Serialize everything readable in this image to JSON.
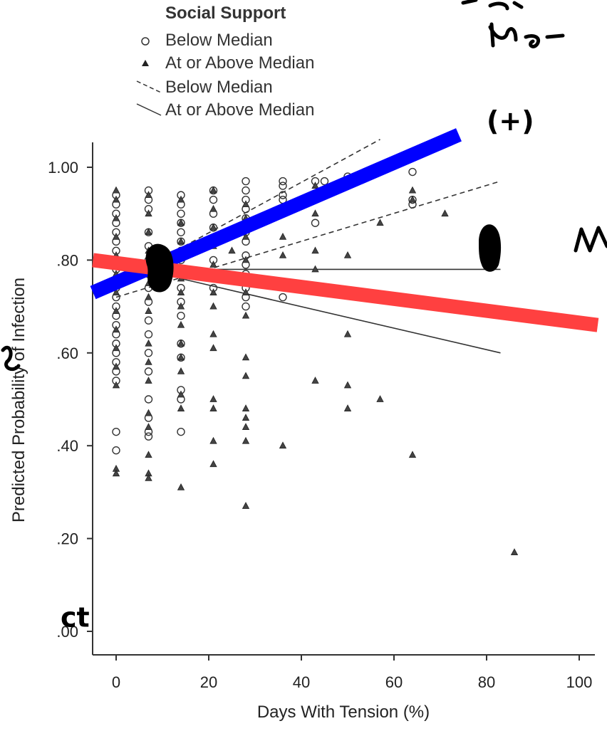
{
  "chart_data": {
    "type": "scatter",
    "xlabel": "Days With Tension (%)",
    "ylabel": "Predicted Probability of Infection",
    "xlim": [
      -5,
      105
    ],
    "ylim": [
      -0.05,
      1.05
    ],
    "x_ticks": [
      0,
      20,
      40,
      60,
      80,
      100
    ],
    "y_ticks": [
      0.0,
      0.2,
      0.4,
      0.6,
      0.8,
      1.0
    ],
    "x_tick_labels": [
      "0",
      "20",
      "40",
      "60",
      "80",
      "100"
    ],
    "y_tick_labels": [
      ".00",
      ".20",
      ".40",
      ".60",
      ".80",
      "1.00"
    ],
    "legend": {
      "title": "Social Support",
      "placement": "top-left",
      "entries": [
        {
          "label": "Below Median",
          "marker": "circle"
        },
        {
          "label": "At or Above Median",
          "marker": "triangle"
        },
        {
          "label": "Below Median",
          "marker": "dashed-line"
        },
        {
          "label": "At or Above Median",
          "marker": "solid-line"
        }
      ]
    },
    "series": [
      {
        "name": "Below Median",
        "marker": "circle",
        "points": [
          [
            0,
            0.94
          ],
          [
            0,
            0.92
          ],
          [
            0,
            0.9
          ],
          [
            0,
            0.88
          ],
          [
            0,
            0.86
          ],
          [
            0,
            0.84
          ],
          [
            0,
            0.82
          ],
          [
            0,
            0.8
          ],
          [
            0,
            0.78
          ],
          [
            0,
            0.76
          ],
          [
            0,
            0.74
          ],
          [
            0,
            0.72
          ],
          [
            0,
            0.7
          ],
          [
            0,
            0.68
          ],
          [
            0,
            0.66
          ],
          [
            0,
            0.64
          ],
          [
            0,
            0.62
          ],
          [
            0,
            0.6
          ],
          [
            0,
            0.58
          ],
          [
            0,
            0.56
          ],
          [
            0,
            0.54
          ],
          [
            0,
            0.43
          ],
          [
            0,
            0.39
          ],
          [
            7,
            0.95
          ],
          [
            7,
            0.93
          ],
          [
            7,
            0.91
          ],
          [
            7,
            0.86
          ],
          [
            7,
            0.83
          ],
          [
            7,
            0.8
          ],
          [
            7,
            0.77
          ],
          [
            7,
            0.74
          ],
          [
            7,
            0.71
          ],
          [
            7,
            0.67
          ],
          [
            7,
            0.64
          ],
          [
            7,
            0.6
          ],
          [
            7,
            0.56
          ],
          [
            7,
            0.5
          ],
          [
            7,
            0.46
          ],
          [
            7,
            0.43
          ],
          [
            7,
            0.42
          ],
          [
            14,
            0.94
          ],
          [
            14,
            0.92
          ],
          [
            14,
            0.9
          ],
          [
            14,
            0.88
          ],
          [
            14,
            0.86
          ],
          [
            14,
            0.84
          ],
          [
            14,
            0.82
          ],
          [
            14,
            0.8
          ],
          [
            14,
            0.77
          ],
          [
            14,
            0.74
          ],
          [
            14,
            0.71
          ],
          [
            14,
            0.68
          ],
          [
            14,
            0.62
          ],
          [
            14,
            0.59
          ],
          [
            14,
            0.52
          ],
          [
            14,
            0.5
          ],
          [
            14,
            0.43
          ],
          [
            21,
            0.95
          ],
          [
            21,
            0.93
          ],
          [
            21,
            0.9
          ],
          [
            21,
            0.87
          ],
          [
            21,
            0.84
          ],
          [
            21,
            0.8
          ],
          [
            21,
            0.77
          ],
          [
            21,
            0.74
          ],
          [
            28,
            0.97
          ],
          [
            28,
            0.95
          ],
          [
            28,
            0.93
          ],
          [
            28,
            0.91
          ],
          [
            28,
            0.89
          ],
          [
            28,
            0.86
          ],
          [
            28,
            0.84
          ],
          [
            28,
            0.81
          ],
          [
            28,
            0.79
          ],
          [
            28,
            0.77
          ],
          [
            28,
            0.74
          ],
          [
            28,
            0.72
          ],
          [
            28,
            0.7
          ],
          [
            36,
            0.97
          ],
          [
            36,
            0.96
          ],
          [
            36,
            0.94
          ],
          [
            36,
            0.93
          ],
          [
            36,
            0.91
          ],
          [
            36,
            0.72
          ],
          [
            43,
            0.88
          ],
          [
            43,
            0.97
          ],
          [
            45,
            0.97
          ],
          [
            50,
            0.98
          ],
          [
            64,
            0.99
          ],
          [
            64,
            0.93
          ],
          [
            64,
            0.92
          ]
        ]
      },
      {
        "name": "At or Above Median",
        "marker": "triangle",
        "points": [
          [
            0,
            0.95
          ],
          [
            0,
            0.93
          ],
          [
            0,
            0.89
          ],
          [
            0,
            0.85
          ],
          [
            0,
            0.81
          ],
          [
            0,
            0.77
          ],
          [
            0,
            0.73
          ],
          [
            0,
            0.69
          ],
          [
            0,
            0.65
          ],
          [
            0,
            0.61
          ],
          [
            0,
            0.57
          ],
          [
            0,
            0.53
          ],
          [
            0,
            0.35
          ],
          [
            0,
            0.34
          ],
          [
            7,
            0.94
          ],
          [
            7,
            0.9
          ],
          [
            7,
            0.86
          ],
          [
            7,
            0.82
          ],
          [
            7,
            0.78
          ],
          [
            7,
            0.75
          ],
          [
            7,
            0.72
          ],
          [
            7,
            0.69
          ],
          [
            7,
            0.62
          ],
          [
            7,
            0.58
          ],
          [
            7,
            0.54
          ],
          [
            7,
            0.47
          ],
          [
            7,
            0.44
          ],
          [
            7,
            0.38
          ],
          [
            7,
            0.34
          ],
          [
            7,
            0.33
          ],
          [
            14,
            0.93
          ],
          [
            14,
            0.88
          ],
          [
            14,
            0.84
          ],
          [
            14,
            0.81
          ],
          [
            14,
            0.76
          ],
          [
            14,
            0.73
          ],
          [
            14,
            0.7
          ],
          [
            14,
            0.66
          ],
          [
            14,
            0.62
          ],
          [
            14,
            0.59
          ],
          [
            14,
            0.56
          ],
          [
            14,
            0.51
          ],
          [
            14,
            0.48
          ],
          [
            14,
            0.31
          ],
          [
            21,
            0.95
          ],
          [
            21,
            0.91
          ],
          [
            21,
            0.87
          ],
          [
            21,
            0.83
          ],
          [
            21,
            0.79
          ],
          [
            21,
            0.73
          ],
          [
            21,
            0.7
          ],
          [
            21,
            0.64
          ],
          [
            21,
            0.61
          ],
          [
            21,
            0.5
          ],
          [
            21,
            0.48
          ],
          [
            21,
            0.41
          ],
          [
            21,
            0.36
          ],
          [
            25,
            0.82
          ],
          [
            28,
            0.92
          ],
          [
            28,
            0.89
          ],
          [
            28,
            0.85
          ],
          [
            28,
            0.8
          ],
          [
            28,
            0.76
          ],
          [
            28,
            0.73
          ],
          [
            28,
            0.68
          ],
          [
            28,
            0.59
          ],
          [
            28,
            0.55
          ],
          [
            28,
            0.48
          ],
          [
            28,
            0.46
          ],
          [
            28,
            0.44
          ],
          [
            28,
            0.41
          ],
          [
            28,
            0.27
          ],
          [
            36,
            0.85
          ],
          [
            36,
            0.81
          ],
          [
            36,
            0.4
          ],
          [
            43,
            0.96
          ],
          [
            43,
            0.9
          ],
          [
            43,
            0.82
          ],
          [
            43,
            0.78
          ],
          [
            43,
            0.73
          ],
          [
            43,
            0.54
          ],
          [
            50,
            0.81
          ],
          [
            50,
            0.64
          ],
          [
            50,
            0.53
          ],
          [
            50,
            0.48
          ],
          [
            57,
            0.88
          ],
          [
            57,
            0.5
          ],
          [
            64,
            0.95
          ],
          [
            64,
            0.93
          ],
          [
            64,
            0.38
          ],
          [
            71,
            0.9
          ],
          [
            86,
            0.17
          ]
        ]
      }
    ],
    "fit_lines": [
      {
        "name": "Below Median",
        "style": "dashed",
        "x": [
          0,
          57
        ],
        "y": [
          0.75,
          1.06
        ]
      },
      {
        "name": "Below Median",
        "style": "dashed",
        "x": [
          0,
          83
        ],
        "y": [
          0.72,
          0.97
        ]
      },
      {
        "name": "At or Above Median",
        "style": "solid",
        "x": [
          14,
          83
        ],
        "y": [
          0.78,
          0.78
        ]
      },
      {
        "name": "At or Above Median",
        "style": "solid",
        "x": [
          14,
          83
        ],
        "y": [
          0.76,
          0.6
        ]
      }
    ],
    "annotations": {
      "blue_line": {
        "color": "#0000ff",
        "x": [
          -5,
          74
        ],
        "y": [
          0.73,
          1.07
        ]
      },
      "red_line": {
        "color": "#ff4040",
        "x": [
          -5,
          104
        ],
        "y": [
          0.8,
          0.66
        ]
      },
      "ink_marks": [
        {
          "text": "(+)",
          "x": 80,
          "y": 1.08
        },
        {
          "text": "ct",
          "x": -12,
          "y": 0.01
        }
      ]
    }
  }
}
